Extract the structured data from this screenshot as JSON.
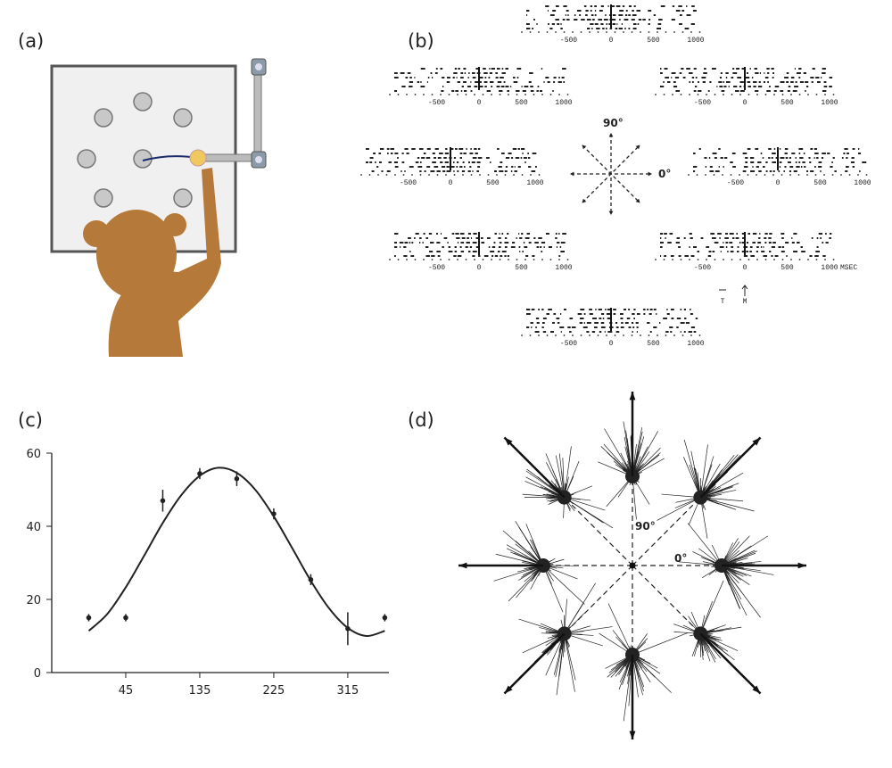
{
  "panels": {
    "a": {
      "label": "(a)"
    },
    "b": {
      "label": "(b)",
      "angle_90": "90°",
      "angle_0": "0°",
      "raster_ticks": [
        -500,
        0,
        500,
        1000
      ],
      "time_unit": "MSEC",
      "marker_t": "T",
      "marker_m": "M"
    },
    "d": {
      "label": "(d)",
      "angle_90": "90°",
      "angle_0": "0°"
    }
  },
  "chart_data": {
    "type": "scatter",
    "label": "(c)",
    "x": [
      0,
      45,
      90,
      135,
      180,
      225,
      270,
      315,
      360
    ],
    "values": [
      15,
      15,
      47,
      54.4,
      53,
      43.4,
      25.4,
      12,
      15
    ],
    "errors": [
      1,
      1,
      3,
      1.5,
      2,
      1.5,
      1.5,
      4.5,
      1
    ],
    "fit": {
      "x": [
        0,
        22.5,
        45,
        67.5,
        90,
        112.5,
        135,
        157.5,
        180,
        202.5,
        225,
        247.5,
        270,
        292.5,
        315,
        337.5,
        360
      ],
      "values": [
        11.4,
        16.0,
        23.3,
        32.0,
        40.9,
        48.5,
        53.8,
        56.0,
        54.6,
        50.0,
        42.7,
        34.0,
        25.1,
        17.5,
        12.2,
        10.0,
        11.4
      ]
    },
    "color": "#222222",
    "xlim": [
      -45,
      365
    ],
    "xticks": [
      45,
      135,
      225,
      315
    ],
    "ylim": [
      0,
      60
    ],
    "yticks": [
      0,
      20,
      40,
      60
    ]
  }
}
